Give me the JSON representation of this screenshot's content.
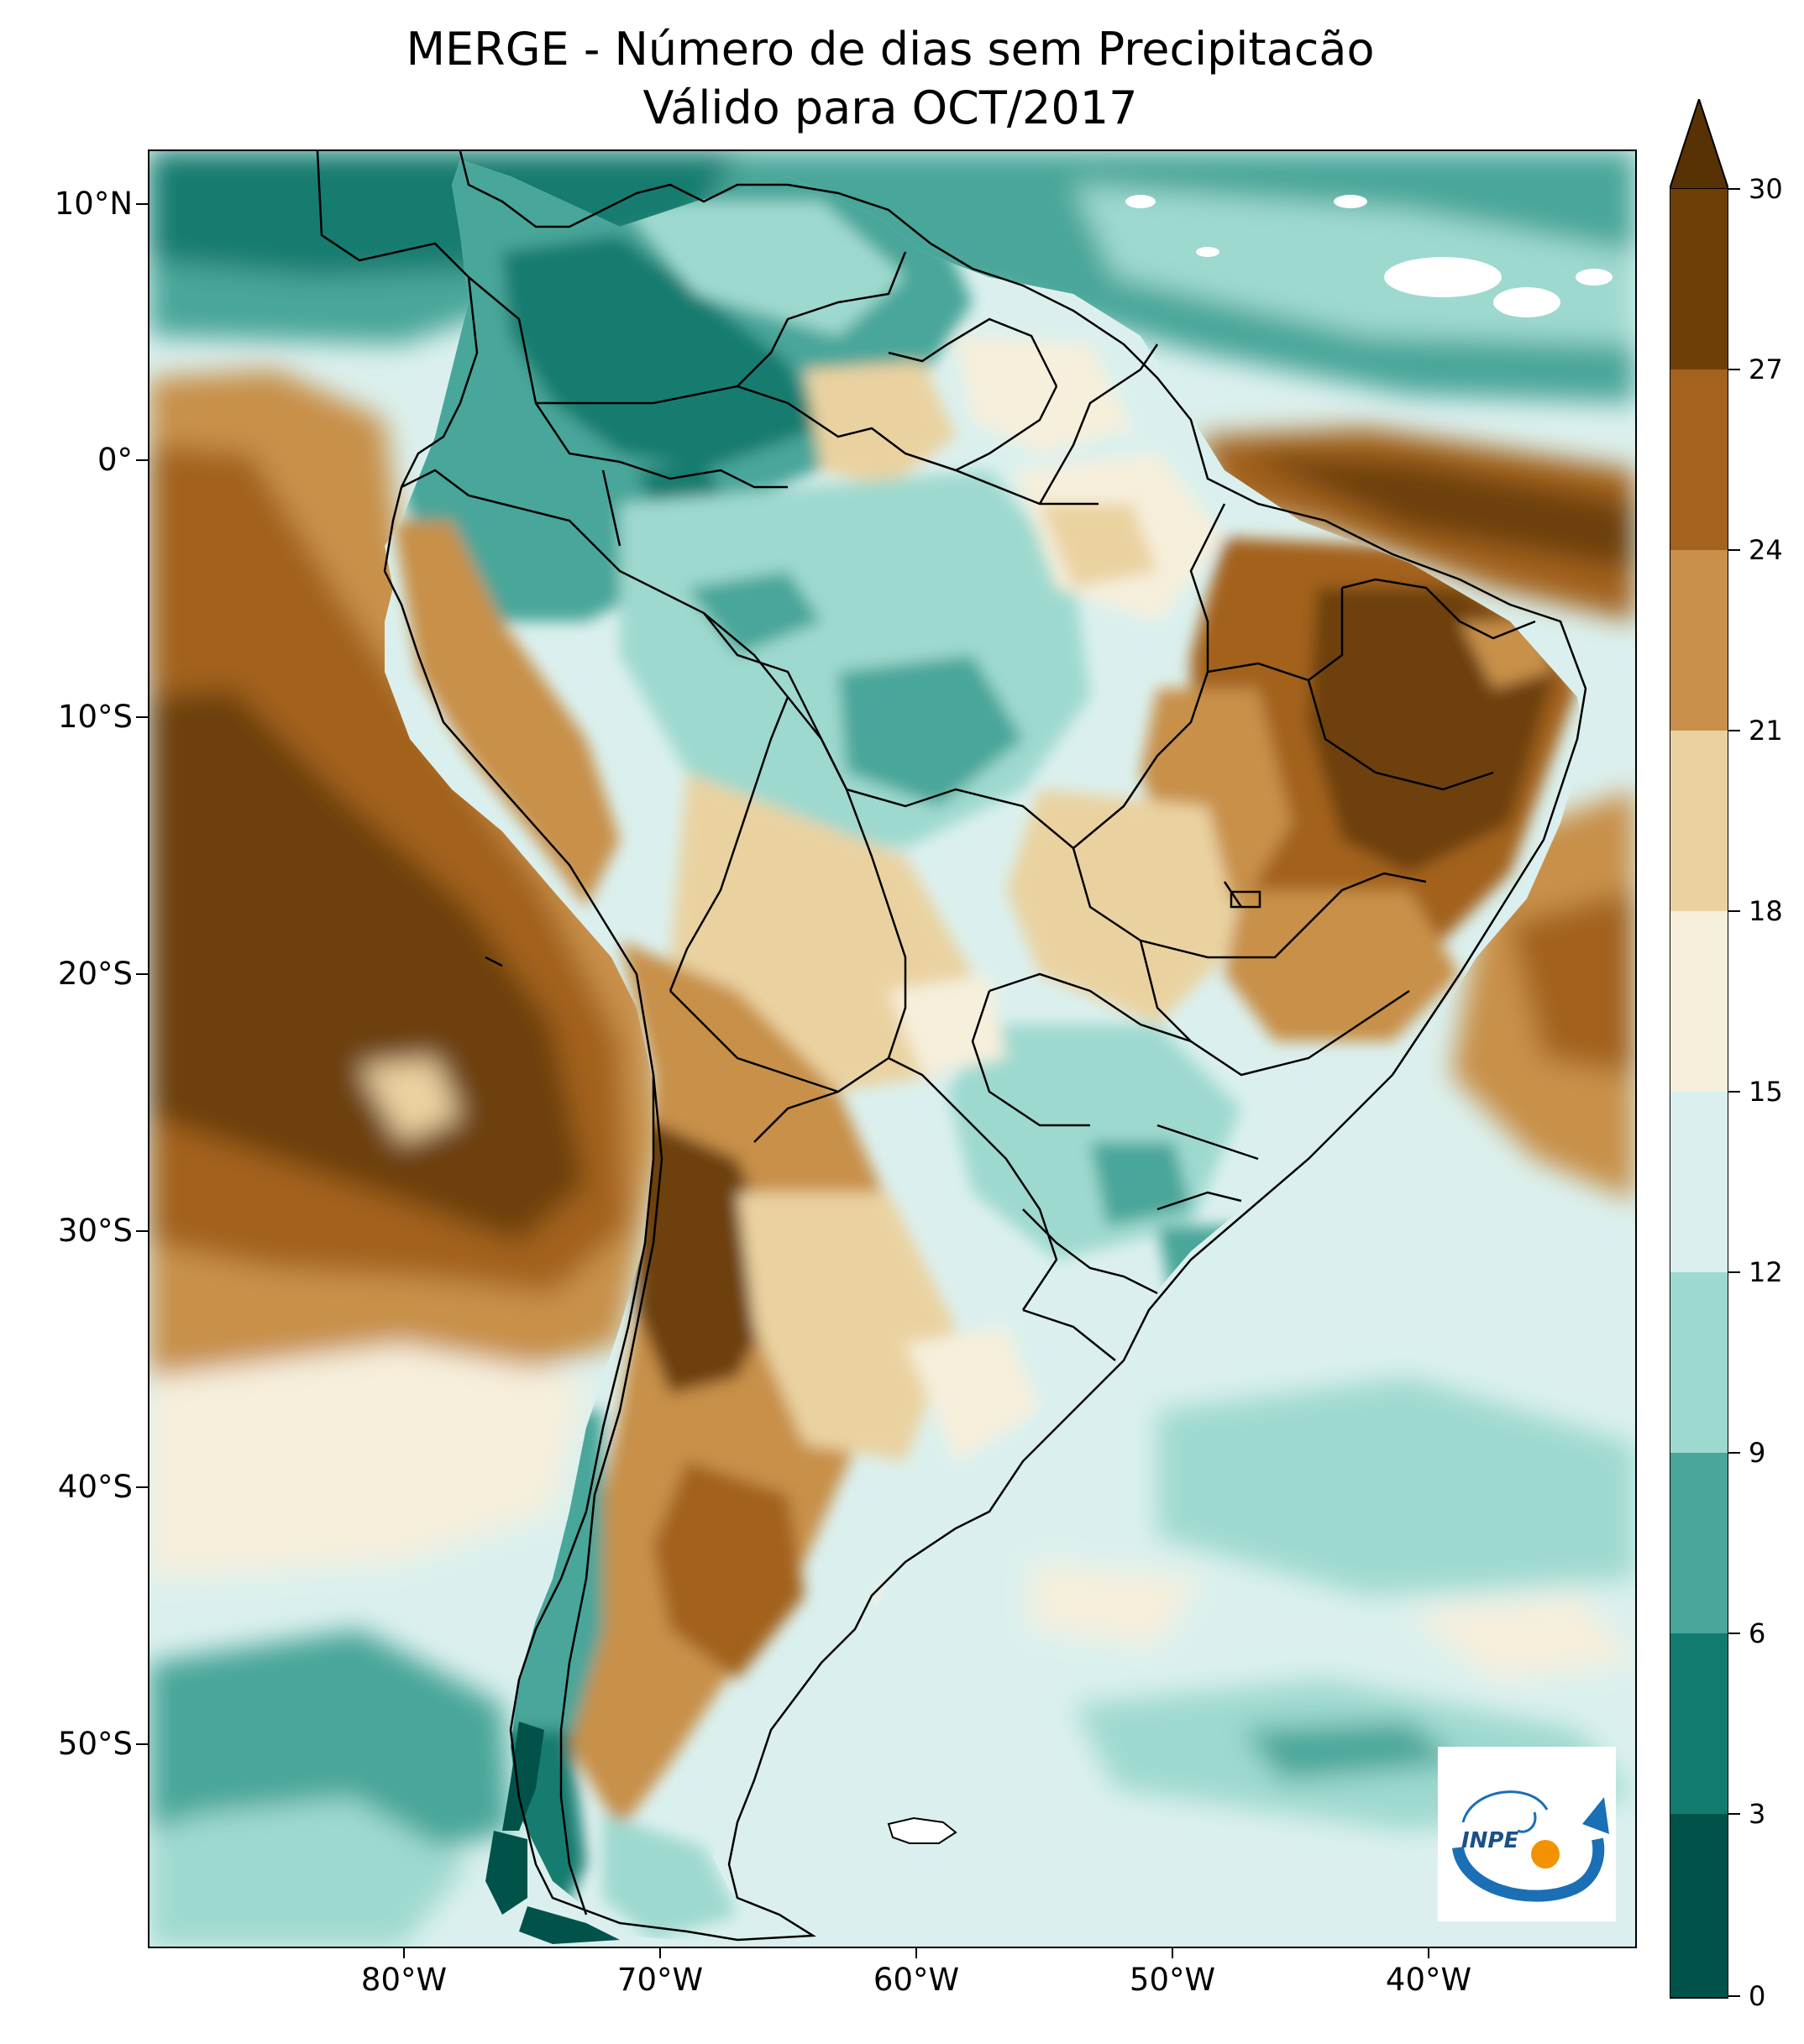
{
  "title_line1": "MERGE - Número de dias sem Precipitacão",
  "title_line2": "Válido para OCT/2017",
  "latitude_labels": [
    {
      "label": "10°N",
      "lat": 10
    },
    {
      "label": "0°",
      "lat": 0
    },
    {
      "label": "10°S",
      "lat": -10
    },
    {
      "label": "20°S",
      "lat": -20
    },
    {
      "label": "30°S",
      "lat": -30
    },
    {
      "label": "40°S",
      "lat": -40
    },
    {
      "label": "50°S",
      "lat": -50
    }
  ],
  "longitude_labels": [
    {
      "label": "80°W",
      "lon": -80
    },
    {
      "label": "70°W",
      "lon": -70
    },
    {
      "label": "60°W",
      "lon": -60
    },
    {
      "label": "50°W",
      "lon": -50
    },
    {
      "label": "40°W",
      "lon": -40
    }
  ],
  "extent": {
    "lon_min": -90,
    "lon_max": -32,
    "lat_min": -57,
    "lat_max": 13
  },
  "colorbar": {
    "ticks": [
      "0",
      "3",
      "6",
      "9",
      "12",
      "15",
      "18",
      "21",
      "24",
      "27",
      "30"
    ],
    "colors": [
      "#01534a",
      "#127b70",
      "#4aa69a",
      "#9ed9cf",
      "#dbf0ee",
      "#f6efdc",
      "#ead2a0",
      "#c8904a",
      "#a3621d",
      "#6d3f07"
    ],
    "extend_color": "#583204",
    "extend": "max"
  },
  "logo_text": "INPE"
}
